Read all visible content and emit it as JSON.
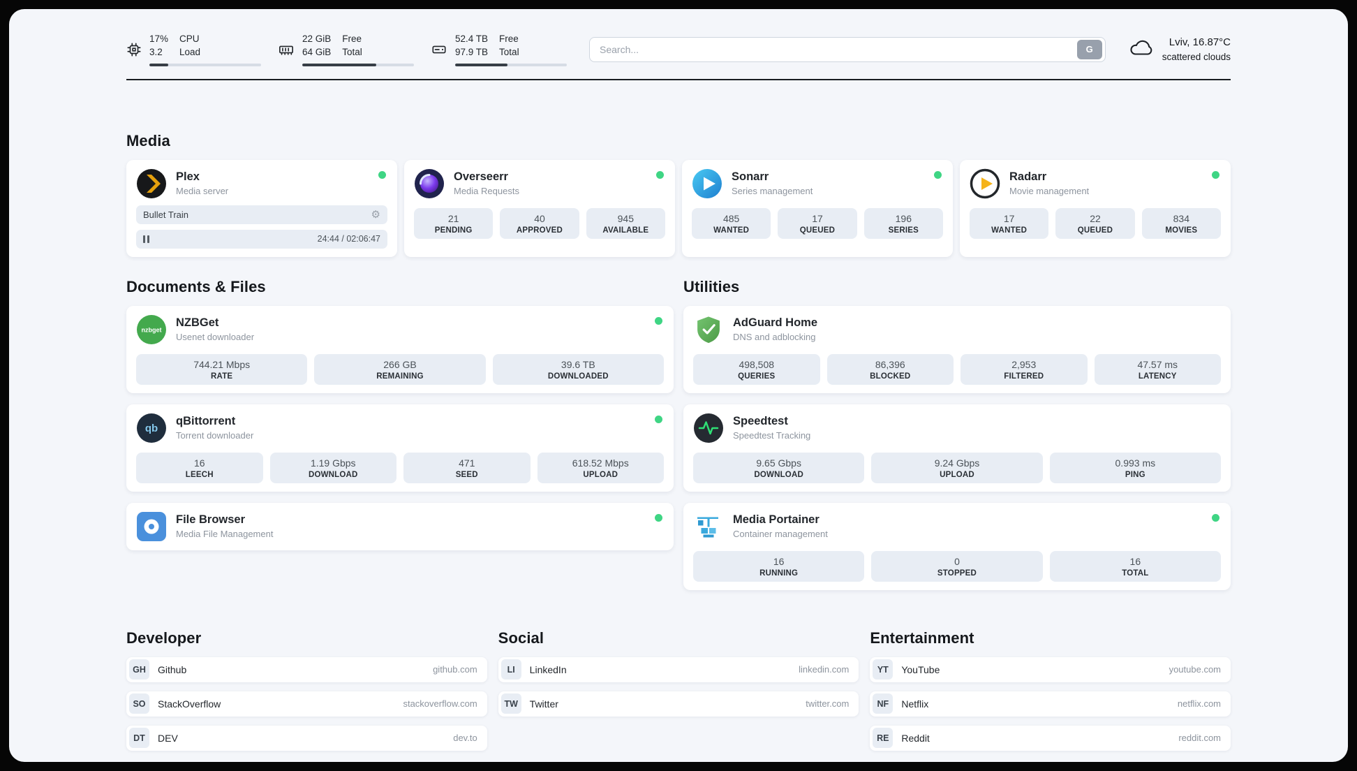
{
  "topbar": {
    "cpu": {
      "value_top": "17%",
      "value_bottom": "3.2",
      "label_top": "CPU",
      "label_bottom": "Load",
      "bar_percent": 17
    },
    "ram": {
      "value_top": "22 GiB",
      "value_bottom": "64 GiB",
      "label_top": "Free",
      "label_bottom": "Total",
      "bar_percent": 66
    },
    "disk": {
      "value_top": "52.4 TB",
      "value_bottom": "97.9 TB",
      "label_top": "Free",
      "label_bottom": "Total",
      "bar_percent": 47
    },
    "search": {
      "placeholder": "Search...",
      "button_label": "G"
    },
    "weather": {
      "location": "Lviv, 16.87°C",
      "condition": "scattered clouds"
    }
  },
  "sections": {
    "media": {
      "title": "Media"
    },
    "documents": {
      "title": "Documents & Files"
    },
    "utilities": {
      "title": "Utilities"
    },
    "developer": {
      "title": "Developer"
    },
    "social": {
      "title": "Social"
    },
    "entertainment": {
      "title": "Entertainment"
    }
  },
  "apps": {
    "plex": {
      "name": "Plex",
      "desc": "Media server",
      "now_playing": "Bullet Train",
      "time": "24:44 / 02:06:47"
    },
    "overseerr": {
      "name": "Overseerr",
      "desc": "Media Requests",
      "stats": [
        {
          "value": "21",
          "label": "PENDING"
        },
        {
          "value": "40",
          "label": "APPROVED"
        },
        {
          "value": "945",
          "label": "AVAILABLE"
        }
      ]
    },
    "sonarr": {
      "name": "Sonarr",
      "desc": "Series management",
      "stats": [
        {
          "value": "485",
          "label": "WANTED"
        },
        {
          "value": "17",
          "label": "QUEUED"
        },
        {
          "value": "196",
          "label": "SERIES"
        }
      ]
    },
    "radarr": {
      "name": "Radarr",
      "desc": "Movie management",
      "stats": [
        {
          "value": "17",
          "label": "WANTED"
        },
        {
          "value": "22",
          "label": "QUEUED"
        },
        {
          "value": "834",
          "label": "MOVIES"
        }
      ]
    },
    "nzbget": {
      "name": "NZBGet",
      "desc": "Usenet downloader",
      "icon_text": "nzbget",
      "stats": [
        {
          "value": "744.21 Mbps",
          "label": "RATE"
        },
        {
          "value": "266 GB",
          "label": "REMAINING"
        },
        {
          "value": "39.6 TB",
          "label": "DOWNLOADED"
        }
      ]
    },
    "qbittorrent": {
      "name": "qBittorrent",
      "desc": "Torrent downloader",
      "icon_text": "qb",
      "stats": [
        {
          "value": "16",
          "label": "LEECH"
        },
        {
          "value": "1.19 Gbps",
          "label": "DOWNLOAD"
        },
        {
          "value": "471",
          "label": "SEED"
        },
        {
          "value": "618.52 Mbps",
          "label": "UPLOAD"
        }
      ]
    },
    "filebrowser": {
      "name": "File Browser",
      "desc": "Media File Management"
    },
    "adguard": {
      "name": "AdGuard Home",
      "desc": "DNS and adblocking",
      "stats": [
        {
          "value": "498,508",
          "label": "QUERIES"
        },
        {
          "value": "86,396",
          "label": "BLOCKED"
        },
        {
          "value": "2,953",
          "label": "FILTERED"
        },
        {
          "value": "47.57 ms",
          "label": "LATENCY"
        }
      ]
    },
    "speedtest": {
      "name": "Speedtest",
      "desc": "Speedtest Tracking",
      "stats": [
        {
          "value": "9.65 Gbps",
          "label": "DOWNLOAD"
        },
        {
          "value": "9.24 Gbps",
          "label": "UPLOAD"
        },
        {
          "value": "0.993 ms",
          "label": "PING"
        }
      ]
    },
    "portainer": {
      "name": "Media Portainer",
      "desc": "Container management",
      "stats": [
        {
          "value": "16",
          "label": "RUNNING"
        },
        {
          "value": "0",
          "label": "STOPPED"
        },
        {
          "value": "16",
          "label": "TOTAL"
        }
      ]
    }
  },
  "bookmarks": {
    "developer": [
      {
        "abbr": "GH",
        "name": "Github",
        "url": "github.com"
      },
      {
        "abbr": "SO",
        "name": "StackOverflow",
        "url": "stackoverflow.com"
      },
      {
        "abbr": "DT",
        "name": "DEV",
        "url": "dev.to"
      }
    ],
    "social": [
      {
        "abbr": "LI",
        "name": "LinkedIn",
        "url": "linkedin.com"
      },
      {
        "abbr": "TW",
        "name": "Twitter",
        "url": "twitter.com"
      }
    ],
    "entertainment": [
      {
        "abbr": "YT",
        "name": "YouTube",
        "url": "youtube.com"
      },
      {
        "abbr": "NF",
        "name": "Netflix",
        "url": "netflix.com"
      },
      {
        "abbr": "RE",
        "name": "Reddit",
        "url": "reddit.com"
      }
    ]
  },
  "icons": {
    "gear": "⚙"
  },
  "colors": {
    "status_online": "#3fd584",
    "plex_accent": "#e5a00d",
    "page_bg": "#f4f6fa",
    "stat_box_bg": "#e8edf4"
  }
}
